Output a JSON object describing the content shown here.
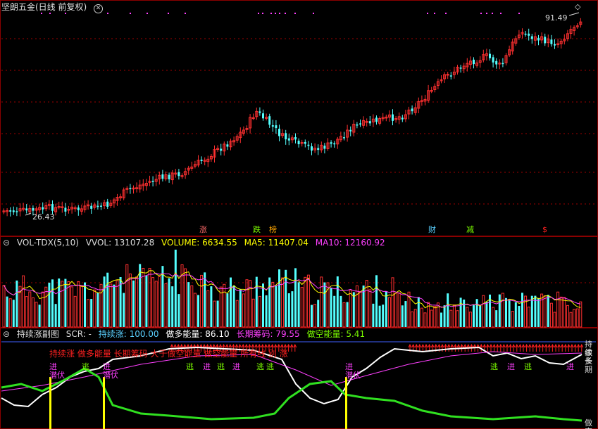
{
  "main": {
    "title": "坚朗五金(日线 前复权)",
    "close_icon": "circle-x-icon",
    "diamond_icon": "diamond-icon",
    "price_high": "91.49",
    "price_low": "26.43"
  },
  "events": [
    {
      "label": "涨",
      "color": "#ff6a6a"
    },
    {
      "label": "跌",
      "color": "#7cfc00"
    },
    {
      "label": "榜",
      "color": "#ffa500"
    },
    {
      "label": "财",
      "color": "#5ad0ff"
    },
    {
      "label": "减",
      "color": "#7cfc00"
    },
    {
      "label": "$",
      "color": "#ff2020"
    }
  ],
  "volume": {
    "name": "VOL-TDX(5,10)",
    "vvol": "VVOL: 13107.28",
    "vol": "VOLUME: 6634.55",
    "ma5": "MA5: 11407.04",
    "ma10": "MA10: 12160.92",
    "colors": {
      "vol": "#ffff00",
      "ma5": "#ffff00",
      "ma10": "#ff40ff"
    }
  },
  "indicator": {
    "name": "持续涨副图",
    "scr": "SCR: -",
    "item1": "持续涨: 100.00",
    "item2": "做多能量: 86.10",
    "item3": "长期筹码: 79.55",
    "item4": "做空能量: 5.41",
    "item3_short": "长期",
    "item1_short": "持续",
    "item2_short": "做多",
    "item4_short": "做空",
    "overlay_text": "持续涨 做多能量 长期筹码 大于做空能量 做空能量 所有线 别 涨",
    "signals": [
      {
        "label": "进",
        "color": "#ff40ff"
      },
      {
        "label": "逃",
        "color": "#7cfc00"
      },
      {
        "label": "进",
        "color": "#ff40ff"
      },
      {
        "label": "潜伏",
        "color": "#ff40ff"
      },
      {
        "label": "潜伏",
        "color": "#ff40ff"
      },
      {
        "label": "逃",
        "color": "#7cfc00"
      },
      {
        "label": "进",
        "color": "#ff40ff"
      },
      {
        "label": "逃",
        "color": "#7cfc00"
      },
      {
        "label": "进",
        "color": "#ff40ff"
      },
      {
        "label": "逃",
        "color": "#7cfc00"
      },
      {
        "label": "逃",
        "color": "#7cfc00"
      },
      {
        "label": "进",
        "color": "#ff40ff"
      },
      {
        "label": "潜伏",
        "color": "#ff40ff"
      },
      {
        "label": "逃",
        "color": "#7cfc00"
      },
      {
        "label": "进",
        "color": "#ff40ff"
      },
      {
        "label": "逃",
        "color": "#7cfc00"
      },
      {
        "label": "进",
        "color": "#ff40ff"
      }
    ]
  }
}
